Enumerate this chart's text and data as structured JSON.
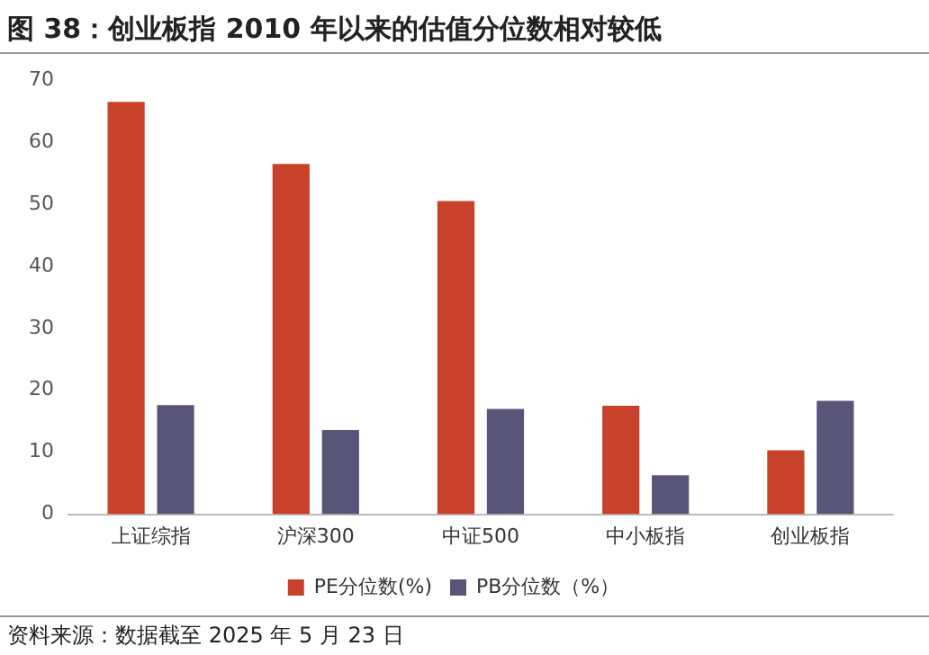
{
  "chart_data": {
    "type": "bar",
    "title": "图 38：创业板指 2010 年以来的估值分位数相对较低",
    "categories": [
      "上证综指",
      "沪深300",
      "中证500",
      "中小板指",
      "创业板指"
    ],
    "series": [
      {
        "name": "PE分位数(%)",
        "color": "#c8412a",
        "values": [
          66.5,
          56.5,
          50.5,
          17.5,
          10.3
        ]
      },
      {
        "name": "PB分位数（%）",
        "color": "#585578",
        "values": [
          17.6,
          13.6,
          17,
          6.3,
          18.3
        ]
      }
    ],
    "ylim": [
      0,
      70
    ],
    "yticks": [
      0,
      10,
      20,
      30,
      40,
      50,
      60,
      70
    ],
    "grid": false,
    "legend": "bottom",
    "annotations": [
      "资料来源：数据截至 2025 年 5 月 23 日"
    ]
  }
}
